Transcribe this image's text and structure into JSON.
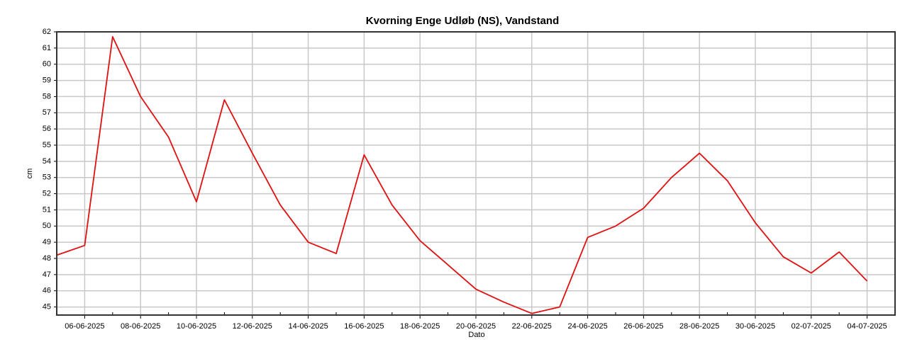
{
  "chart_data": {
    "type": "line",
    "title": "Kvorning Enge Udløb (NS), Vandstand",
    "xlabel": "Dato",
    "ylabel": "cm",
    "x": [
      "05-06-2025",
      "06-06-2025",
      "07-06-2025",
      "08-06-2025",
      "09-06-2025",
      "10-06-2025",
      "11-06-2025",
      "12-06-2025",
      "13-06-2025",
      "14-06-2025",
      "15-06-2025",
      "16-06-2025",
      "17-06-2025",
      "18-06-2025",
      "19-06-2025",
      "20-06-2025",
      "21-06-2025",
      "22-06-2025",
      "23-06-2025",
      "24-06-2025",
      "25-06-2025",
      "26-06-2025",
      "27-06-2025",
      "28-06-2025",
      "29-06-2025",
      "30-06-2025",
      "01-07-2025",
      "02-07-2025",
      "03-07-2025",
      "04-07-2025"
    ],
    "series": [
      {
        "name": "Vandstand",
        "color": "#e01010",
        "values": [
          48.2,
          48.8,
          61.7,
          58.0,
          55.5,
          51.5,
          57.8,
          54.5,
          51.3,
          49.0,
          48.3,
          54.4,
          51.3,
          49.1,
          47.6,
          46.1,
          45.3,
          44.6,
          45.0,
          49.3,
          50.0,
          51.1,
          53.0,
          54.5,
          52.8,
          50.2,
          48.1,
          47.1,
          48.4,
          46.6
        ]
      }
    ],
    "xlim": [
      "05-06-2025",
      "05-07-2025"
    ],
    "xticks": [
      "06-06-2025",
      "08-06-2025",
      "10-06-2025",
      "12-06-2025",
      "14-06-2025",
      "16-06-2025",
      "18-06-2025",
      "20-06-2025",
      "22-06-2025",
      "24-06-2025",
      "26-06-2025",
      "28-06-2025",
      "30-06-2025",
      "02-07-2025",
      "04-07-2025"
    ],
    "ylim": [
      44.5,
      62
    ],
    "yticks": [
      45,
      46,
      47,
      48,
      49,
      50,
      51,
      52,
      53,
      54,
      55,
      56,
      57,
      58,
      59,
      60,
      61,
      62
    ],
    "grid": true
  }
}
